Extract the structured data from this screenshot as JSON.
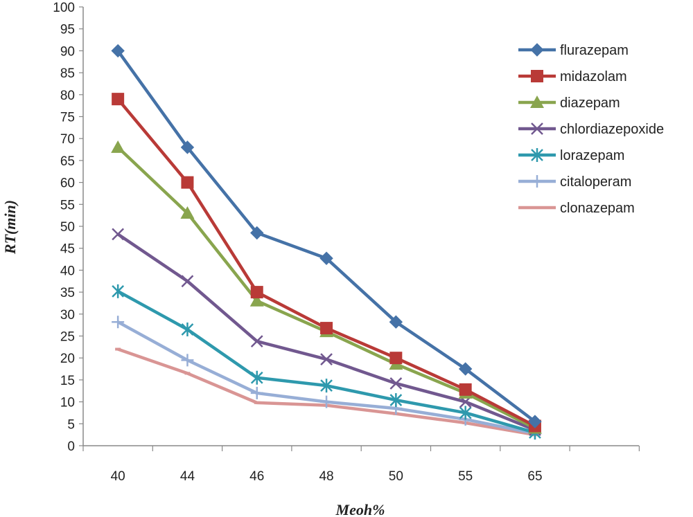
{
  "chart_data": {
    "type": "line",
    "title": "",
    "xlabel": "Meoh%",
    "ylabel": "RT(min)",
    "categories": [
      "40",
      "44",
      "46",
      "48",
      "50",
      "55",
      "65"
    ],
    "ylim": [
      0,
      100
    ],
    "ytick_step": 5,
    "grid": false,
    "legend_position": "top-right",
    "series": [
      {
        "name": "flurazepam",
        "color": "#4572A7",
        "marker": "diamond",
        "values": [
          90,
          68,
          48.5,
          42.7,
          28.2,
          17.5,
          5.5
        ]
      },
      {
        "name": "midazolam",
        "color": "#B93A37",
        "marker": "square",
        "values": [
          79,
          60,
          35,
          26.8,
          20,
          12.8,
          4.5
        ]
      },
      {
        "name": "diazepam",
        "color": "#89A54E",
        "marker": "triangle",
        "values": [
          68,
          53,
          33,
          26,
          18.6,
          12,
          4
        ]
      },
      {
        "name": "chlordiazepoxide",
        "color": "#71588F",
        "marker": "x",
        "values": [
          48.2,
          37.5,
          23.8,
          19.7,
          14.2,
          10,
          3.6
        ]
      },
      {
        "name": "lorazepam",
        "color": "#2E99AD",
        "marker": "asterisk",
        "values": [
          35.2,
          26.5,
          15.5,
          13.7,
          10.4,
          7.5,
          3
        ]
      },
      {
        "name": "citaloperam",
        "color": "#97AED6",
        "marker": "plus",
        "values": [
          28.2,
          19.5,
          12,
          10,
          8.5,
          6,
          2.8
        ]
      },
      {
        "name": "clonazepam",
        "color": "#D99594",
        "marker": "none",
        "values": [
          22,
          16.5,
          9.8,
          9.2,
          7.3,
          5.2,
          2.5
        ]
      }
    ]
  }
}
